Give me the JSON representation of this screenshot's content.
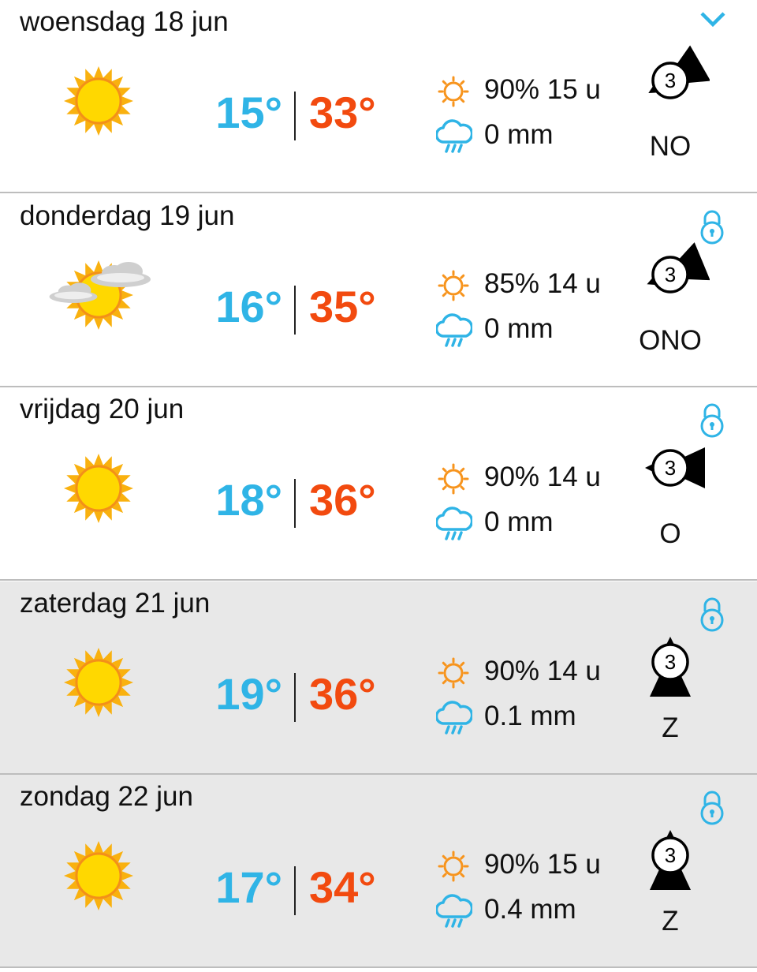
{
  "colors": {
    "low": "#2fb4e6",
    "high": "#f24a0f",
    "sun": "#f7941d",
    "rain": "#2fb4e6"
  },
  "days": [
    {
      "date": "woensdag 18 jun",
      "icon": "sun-icon",
      "low": "15°",
      "high": "33°",
      "sun": "90% 15 u",
      "rain": "0 mm",
      "wind_force": "3",
      "wind_dir": "NO",
      "action_icon": "chevron-down-icon",
      "shaded": false
    },
    {
      "date": "donderdag 19 jun",
      "icon": "sun-clouds-icon",
      "low": "16°",
      "high": "35°",
      "sun": "85% 14 u",
      "rain": "0 mm",
      "wind_force": "3",
      "wind_dir": "ONO",
      "action_icon": "lock-icon",
      "shaded": false
    },
    {
      "date": "vrijdag 20 jun",
      "icon": "sun-icon",
      "low": "18°",
      "high": "36°",
      "sun": "90% 14 u",
      "rain": "0 mm",
      "wind_force": "3",
      "wind_dir": "O",
      "action_icon": "lock-icon",
      "shaded": false
    },
    {
      "date": "zaterdag 21 jun",
      "icon": "sun-icon",
      "low": "19°",
      "high": "36°",
      "sun": "90% 14 u",
      "rain": "0.1 mm",
      "wind_force": "3",
      "wind_dir": "Z",
      "action_icon": "lock-icon",
      "shaded": true
    },
    {
      "date": "zondag 22 jun",
      "icon": "sun-icon",
      "low": "17°",
      "high": "34°",
      "sun": "90% 15 u",
      "rain": "0.4 mm",
      "wind_force": "3",
      "wind_dir": "Z",
      "action_icon": "lock-icon",
      "shaded": true
    }
  ]
}
